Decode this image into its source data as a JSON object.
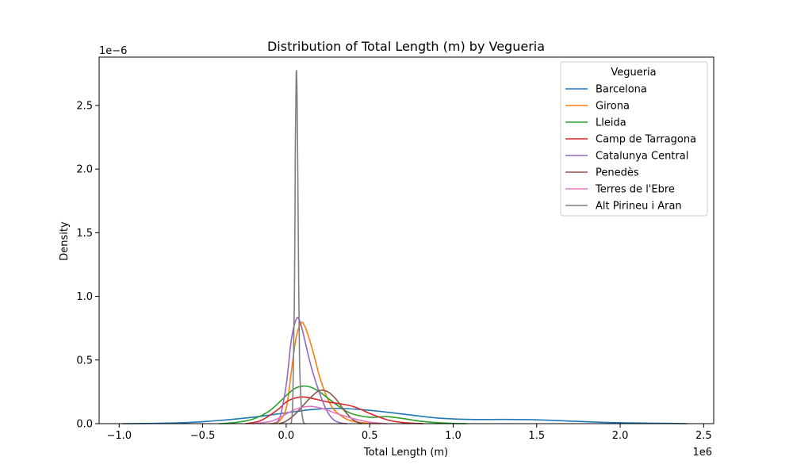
{
  "chart_data": {
    "type": "line",
    "chart_kind": "kde density plot",
    "title": "Distribution of Total Length (m) by Vegueria",
    "xlabel": "Total Length (m)",
    "ylabel": "Density",
    "x_offset_label": "1e6",
    "y_offset_label": "1e−6",
    "xlim": [
      -1120000,
      2560000
    ],
    "ylim": [
      0,
      2.88e-06
    ],
    "x_ticks": [
      {
        "value": -1000000,
        "label": "−1.0"
      },
      {
        "value": -500000,
        "label": "−0.5"
      },
      {
        "value": 0,
        "label": "0.0"
      },
      {
        "value": 500000,
        "label": "0.5"
      },
      {
        "value": 1000000,
        "label": "1.0"
      },
      {
        "value": 1500000,
        "label": "1.5"
      },
      {
        "value": 2000000,
        "label": "2.0"
      },
      {
        "value": 2500000,
        "label": "2.5"
      }
    ],
    "y_ticks": [
      {
        "value": 0,
        "label": "0.0"
      },
      {
        "value": 5e-07,
        "label": "0.5"
      },
      {
        "value": 1e-06,
        "label": "1.0"
      },
      {
        "value": 1.5e-06,
        "label": "1.5"
      },
      {
        "value": 2e-06,
        "label": "2.0"
      },
      {
        "value": 2.5e-06,
        "label": "2.5"
      }
    ],
    "grid": false,
    "legend": {
      "title": "Vegueria",
      "placement": "top-right"
    },
    "series": [
      {
        "name": "Barcelona",
        "color": "#1f77b4",
        "x": [
          -980000,
          -800000,
          -600000,
          -400000,
          -200000,
          0,
          150000,
          300000,
          500000,
          700000,
          900000,
          1100000,
          1300000,
          1500000,
          1700000,
          1900000,
          2100000,
          2300000,
          2400000
        ],
        "y": [
          0,
          2e-09,
          8e-09,
          2.5e-08,
          5e-08,
          8.5e-08,
          1.1e-07,
          1.2e-07,
          1.05e-07,
          7.5e-08,
          4.5e-08,
          3.3e-08,
          3.3e-08,
          3e-08,
          2e-08,
          1e-08,
          5e-09,
          2e-09,
          0
        ]
      },
      {
        "name": "Girona",
        "color": "#ff7f0e",
        "x": [
          -100000,
          -50000,
          0,
          30000,
          60000,
          90000,
          110000,
          140000,
          170000,
          200000,
          240000,
          280000,
          330000,
          380000,
          440000,
          500000,
          560000
        ],
        "y": [
          0,
          8e-09,
          1.2e-07,
          4e-07,
          6.8e-07,
          7.9e-07,
          7.7e-07,
          6.6e-07,
          5.2e-07,
          3.7e-07,
          2.2e-07,
          1.2e-07,
          6e-08,
          2.5e-08,
          1e-08,
          3e-09,
          0
        ]
      },
      {
        "name": "Lleida",
        "color": "#2ca02c",
        "x": [
          -400000,
          -300000,
          -200000,
          -100000,
          0,
          50000,
          100000,
          150000,
          200000,
          250000,
          300000,
          350000,
          400000,
          500000,
          600000,
          700000,
          800000,
          900000,
          1000000,
          1080000
        ],
        "y": [
          0,
          1e-08,
          3.5e-08,
          1e-07,
          2.2e-07,
          2.75e-07,
          2.95e-07,
          2.85e-07,
          2.5e-07,
          2e-07,
          1.5e-07,
          1.05e-07,
          7.5e-08,
          5e-08,
          5.5e-08,
          4e-08,
          2e-08,
          8e-09,
          2e-09,
          0
        ]
      },
      {
        "name": "Camp de Tarragona",
        "color": "#d62728",
        "x": [
          -240000,
          -150000,
          -50000,
          0,
          50000,
          100000,
          150000,
          200000,
          250000,
          300000,
          350000,
          400000,
          450000,
          500000,
          560000,
          620000,
          700000,
          780000,
          820000
        ],
        "y": [
          0,
          2.5e-08,
          1.1e-07,
          1.7e-07,
          2e-07,
          2.1e-07,
          2e-07,
          1.85e-07,
          1.7e-07,
          1.6e-07,
          1.5e-07,
          1.35e-07,
          1.1e-07,
          8e-08,
          5e-08,
          2.5e-08,
          8e-09,
          2e-09,
          0
        ]
      },
      {
        "name": "Catalunya Central",
        "color": "#9467bd",
        "x": [
          -80000,
          -40000,
          0,
          30000,
          60000,
          80000,
          100000,
          130000,
          160000,
          200000,
          240000,
          280000,
          320000,
          360000
        ],
        "y": [
          0,
          4e-08,
          3e-07,
          6.5e-07,
          8.2e-07,
          8.1e-07,
          7.2e-07,
          5.5e-07,
          4e-07,
          2.4e-07,
          1.1e-07,
          3.5e-08,
          8e-09,
          0
        ]
      },
      {
        "name": "Penedès",
        "color": "#8c564b",
        "x": [
          -40000,
          0,
          50000,
          100000,
          150000,
          200000,
          250000,
          300000,
          350000,
          400000,
          450000
        ],
        "y": [
          0,
          2e-08,
          7e-08,
          1.4e-07,
          2.1e-07,
          2.6e-07,
          2.5e-07,
          1.9e-07,
          1e-07,
          3e-08,
          0
        ]
      },
      {
        "name": "Terres de l'Ebre",
        "color": "#e377c2",
        "x": [
          -200000,
          -100000,
          -50000,
          0,
          50000,
          100000,
          150000,
          200000,
          250000,
          300000,
          400000,
          500000,
          600000
        ],
        "y": [
          0,
          1.5e-08,
          4e-08,
          7.5e-08,
          1.1e-07,
          1.3e-07,
          1.35e-07,
          1.25e-07,
          1.05e-07,
          8e-08,
          4e-08,
          1.2e-08,
          0
        ]
      },
      {
        "name": "Alt Pirineu i Aran",
        "color": "#7f7f7f",
        "x": [
          30000,
          40000,
          50000,
          55000,
          60000,
          65000,
          70000,
          75000,
          80000,
          90000,
          100000,
          110000
        ],
        "y": [
          0,
          2e-07,
          1.1e-06,
          2.2e-06,
          2.75e-06,
          2.6e-06,
          1.9e-06,
          1.1e-06,
          5e-07,
          1.5e-07,
          3e-08,
          0
        ]
      }
    ]
  }
}
